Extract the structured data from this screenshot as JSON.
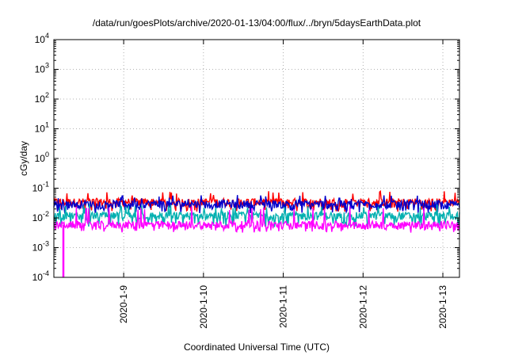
{
  "chart_data": {
    "type": "line",
    "title": "/data/run/goesPlots/archive/2020-01-13/04:00/flux/../bryn/5daysEarthData.plot",
    "xlabel": "Coordinated Universal Time (UTC)",
    "ylabel": "cGy/day",
    "yscale": "log",
    "ylim": [
      0.0001,
      10000
    ],
    "xlim": [
      "2020-01-08 03:00",
      "2020-01-13 05:00"
    ],
    "grid": true,
    "x_ticks": [
      "2020-1-9",
      "2020-1-10",
      "2020-1-11",
      "2020-1-12",
      "2020-1-13"
    ],
    "y_ticks": [
      {
        "base": "10",
        "exp": "-4"
      },
      {
        "base": "10",
        "exp": "-3"
      },
      {
        "base": "10",
        "exp": "-2"
      },
      {
        "base": "10",
        "exp": "-1"
      },
      {
        "base": "10",
        "exp": "0"
      },
      {
        "base": "10",
        "exp": "1"
      },
      {
        "base": "10",
        "exp": "2"
      },
      {
        "base": "10",
        "exp": "3"
      },
      {
        "base": "10",
        "exp": "4"
      }
    ],
    "series": [
      {
        "color": "#ff0000",
        "typical": 0.035,
        "low": 0.02,
        "peak": 0.08
      },
      {
        "color": "#0000cc",
        "typical": 0.03,
        "low": 0.018,
        "peak": 0.06
      },
      {
        "color": "#00b0b0",
        "typical": 0.012,
        "low": 0.006,
        "peak": 0.03
      },
      {
        "color": "#ff00ff",
        "typical": 0.006,
        "low": 0.004,
        "peak": 0.025,
        "min_dip": 0.0001
      }
    ]
  }
}
